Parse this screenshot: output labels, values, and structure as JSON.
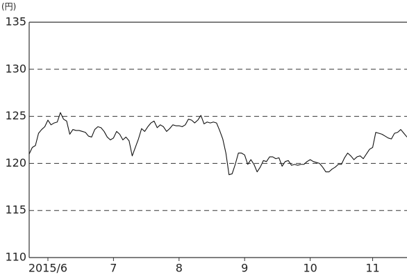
{
  "chart_data": {
    "type": "line",
    "y_label": "(円)",
    "categories": [
      null,
      null,
      null,
      null,
      null,
      null,
      "2015/6",
      null,
      null,
      null,
      null,
      null,
      null,
      null,
      null,
      null,
      null,
      null,
      null,
      null,
      null,
      null,
      null,
      null,
      null,
      null,
      null,
      "7",
      null,
      null,
      null,
      null,
      null,
      null,
      null,
      null,
      null,
      null,
      null,
      null,
      null,
      null,
      null,
      null,
      null,
      null,
      null,
      null,
      "8",
      null,
      null,
      null,
      null,
      null,
      null,
      null,
      null,
      null,
      null,
      null,
      null,
      null,
      null,
      null,
      null,
      null,
      null,
      null,
      null,
      "9",
      null,
      null,
      null,
      null,
      null,
      null,
      null,
      null,
      null,
      null,
      null,
      null,
      null,
      null,
      null,
      null,
      null,
      null,
      null,
      null,
      "10",
      null,
      null,
      null,
      null,
      null,
      null,
      null,
      null,
      null,
      null,
      null,
      null,
      null,
      null,
      null,
      null,
      null,
      null,
      null,
      "11",
      null,
      null,
      null,
      null,
      null,
      null,
      null,
      null,
      null,
      null,
      null
    ],
    "values": [
      121.0,
      121.7,
      121.9,
      123.2,
      123.6,
      123.9,
      124.6,
      124.1,
      124.3,
      124.4,
      125.4,
      124.7,
      124.5,
      123.1,
      123.6,
      123.5,
      123.5,
      123.4,
      123.3,
      122.9,
      122.8,
      123.6,
      123.9,
      123.8,
      123.4,
      122.8,
      122.5,
      122.7,
      123.4,
      123.1,
      122.5,
      122.8,
      122.4,
      120.8,
      121.7,
      122.6,
      123.7,
      123.4,
      123.9,
      124.3,
      124.5,
      123.8,
      124.1,
      123.9,
      123.4,
      123.7,
      124.1,
      124.0,
      124.0,
      123.9,
      124.1,
      124.7,
      124.6,
      124.3,
      124.6,
      125.1,
      124.2,
      124.4,
      124.3,
      124.4,
      124.3,
      123.5,
      122.6,
      121.1,
      118.8,
      118.9,
      119.9,
      121.1,
      121.1,
      120.9,
      119.9,
      120.4,
      119.9,
      119.1,
      119.6,
      120.3,
      120.2,
      120.7,
      120.7,
      120.5,
      120.6,
      119.7,
      120.2,
      120.3,
      119.8,
      119.9,
      119.8,
      119.9,
      119.9,
      120.2,
      120.4,
      120.2,
      120.1,
      120.0,
      119.6,
      119.1,
      119.1,
      119.4,
      119.6,
      119.9,
      119.9,
      120.6,
      121.1,
      120.8,
      120.4,
      120.7,
      120.8,
      120.5,
      121.0,
      121.5,
      121.7,
      123.3,
      123.2,
      123.1,
      122.9,
      122.7,
      122.6,
      123.2,
      123.3,
      123.6,
      123.2,
      122.8
    ],
    "color": "#111111",
    "ylim": [
      110,
      135
    ],
    "yticks": [
      110,
      115,
      120,
      125,
      130,
      135
    ],
    "grid": true
  }
}
